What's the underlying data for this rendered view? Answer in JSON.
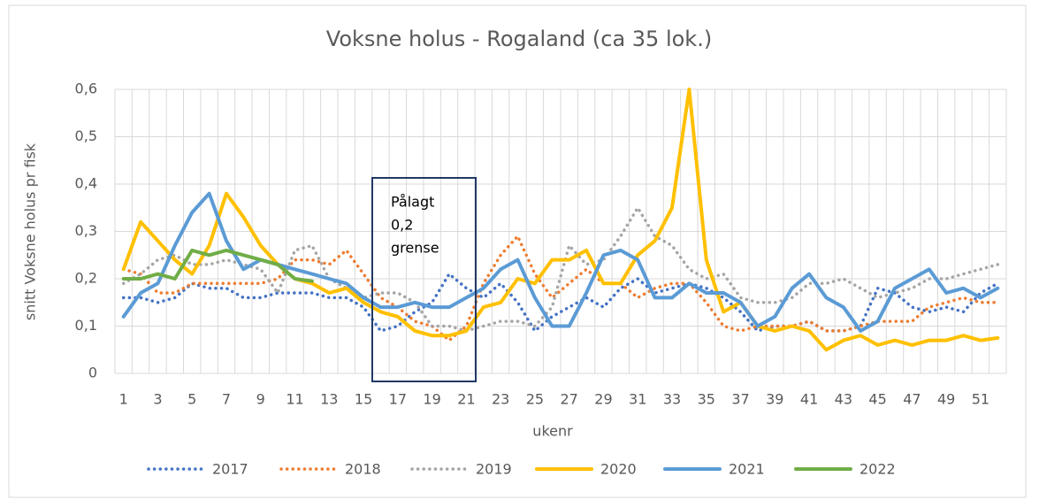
{
  "chart_data": {
    "type": "line",
    "title": "Voksne holus - Rogaland (ca 35 lok.)",
    "y_label": "snitt Voksne holus pr fisk",
    "x_label": "ukenr",
    "annotation": {
      "lines": [
        "Pålagt",
        "0,2",
        "grense"
      ]
    },
    "categories": [
      "1",
      null,
      "3",
      null,
      "5",
      null,
      "7",
      null,
      "9",
      null,
      "11",
      null,
      "13",
      null,
      "15",
      null,
      "17",
      null,
      "19",
      null,
      "21",
      null,
      "23",
      null,
      "25",
      null,
      "27",
      null,
      "29",
      null,
      "31",
      null,
      "33",
      null,
      "35",
      null,
      "37",
      null,
      "39",
      null,
      "41",
      null,
      "43",
      null,
      "45",
      null,
      "47",
      null,
      "49",
      null,
      "51",
      null
    ],
    "ylim": [
      0,
      0.6
    ],
    "yticks": [
      0,
      {
        "value": 0.1,
        "label": "0,1"
      },
      {
        "value": 0.2,
        "label": "0,2"
      },
      {
        "value": 0.3,
        "label": "0,3"
      },
      {
        "value": 0.4,
        "label": "0,4"
      },
      {
        "value": 0.5,
        "label": "0,5"
      },
      {
        "value": 0.6,
        "label": "0,6"
      }
    ],
    "grid": true,
    "legend": "bottom",
    "series": [
      {
        "name": "2017",
        "color": "#4472c4",
        "style": "dotted",
        "values": [
          0.16,
          0.16,
          0.15,
          0.16,
          0.19,
          0.18,
          0.18,
          0.16,
          0.16,
          0.17,
          0.17,
          0.17,
          0.16,
          0.16,
          0.14,
          0.09,
          0.1,
          0.13,
          0.15,
          0.21,
          0.18,
          0.16,
          0.19,
          0.15,
          0.09,
          0.12,
          0.14,
          0.16,
          0.14,
          0.18,
          0.2,
          0.17,
          0.18,
          0.19,
          0.18,
          0.16,
          0.13,
          0.09,
          0.1,
          0.1,
          0.11,
          0.09,
          0.09,
          0.1,
          0.18,
          0.17,
          0.14,
          0.13,
          0.14,
          0.13,
          0.17,
          0.19
        ]
      },
      {
        "name": "2018",
        "color": "#ed7d31",
        "style": "dotted",
        "values": [
          0.22,
          0.21,
          0.17,
          0.17,
          0.19,
          0.19,
          0.19,
          0.19,
          0.19,
          0.2,
          0.24,
          0.24,
          0.23,
          0.26,
          0.21,
          0.16,
          0.14,
          0.11,
          0.1,
          0.07,
          0.1,
          0.19,
          0.25,
          0.29,
          0.21,
          0.16,
          0.19,
          0.22,
          0.19,
          0.19,
          0.16,
          0.18,
          0.19,
          0.19,
          0.15,
          0.1,
          0.09,
          0.1,
          0.1,
          0.1,
          0.11,
          0.09,
          0.09,
          0.1,
          0.11,
          0.11,
          0.11,
          0.14,
          0.15,
          0.16,
          0.15,
          0.15
        ]
      },
      {
        "name": "2019",
        "color": "#a5a5a5",
        "style": "dotted",
        "values": [
          0.19,
          0.21,
          0.24,
          0.25,
          0.23,
          0.23,
          0.24,
          0.23,
          0.22,
          0.17,
          0.26,
          0.27,
          0.2,
          0.18,
          0.16,
          0.17,
          0.17,
          0.15,
          0.1,
          0.1,
          0.09,
          0.1,
          0.11,
          0.11,
          0.1,
          0.14,
          0.27,
          0.23,
          0.24,
          0.29,
          0.35,
          0.29,
          0.27,
          0.22,
          0.2,
          0.21,
          0.16,
          0.15,
          0.15,
          0.16,
          0.19,
          0.19,
          0.2,
          0.18,
          0.16,
          0.17,
          0.18,
          0.2,
          0.2,
          0.21,
          0.22,
          0.23
        ]
      },
      {
        "name": "2020",
        "color": "#ffc000",
        "style": "solid",
        "values": [
          0.22,
          0.32,
          0.28,
          0.24,
          0.21,
          0.27,
          0.38,
          0.33,
          0.27,
          0.23,
          0.2,
          0.19,
          0.17,
          0.18,
          0.15,
          0.13,
          0.12,
          0.09,
          0.08,
          0.08,
          0.09,
          0.14,
          0.15,
          0.2,
          0.19,
          0.24,
          0.24,
          0.26,
          0.19,
          0.19,
          0.25,
          0.28,
          0.35,
          0.6,
          0.24,
          0.13,
          0.15,
          0.1,
          0.09,
          0.1,
          0.09,
          0.05,
          0.07,
          0.08,
          0.06,
          0.07,
          0.06,
          0.07,
          0.07,
          0.08,
          0.07,
          0.075
        ]
      },
      {
        "name": "2021",
        "color": "#5b9bd5",
        "style": "solid",
        "values": [
          0.12,
          0.17,
          0.19,
          0.27,
          0.34,
          0.38,
          0.28,
          0.22,
          0.24,
          0.23,
          0.22,
          0.21,
          0.2,
          0.19,
          0.16,
          0.14,
          0.14,
          0.15,
          0.14,
          0.14,
          0.16,
          0.18,
          0.22,
          0.24,
          0.16,
          0.1,
          0.1,
          0.17,
          0.25,
          0.26,
          0.24,
          0.16,
          0.16,
          0.19,
          0.17,
          0.17,
          0.15,
          0.1,
          0.12,
          0.18,
          0.21,
          0.16,
          0.14,
          0.09,
          0.11,
          0.18,
          0.2,
          0.22,
          0.17,
          0.18,
          0.16,
          0.18
        ]
      },
      {
        "name": "2022",
        "color": "#70ad47",
        "style": "solid",
        "values": [
          0.2,
          0.2,
          0.21,
          0.2,
          0.26,
          0.25,
          0.26,
          0.25,
          0.24,
          0.23,
          0.2,
          0.195,
          null,
          null,
          null,
          null,
          null,
          null,
          null,
          null,
          null,
          null,
          null,
          null,
          null,
          null,
          null,
          null,
          null,
          null,
          null,
          null,
          null,
          null,
          null,
          null,
          null,
          null,
          null,
          null,
          null,
          null,
          null,
          null,
          null,
          null,
          null,
          null,
          null,
          null,
          null,
          null
        ]
      }
    ]
  }
}
